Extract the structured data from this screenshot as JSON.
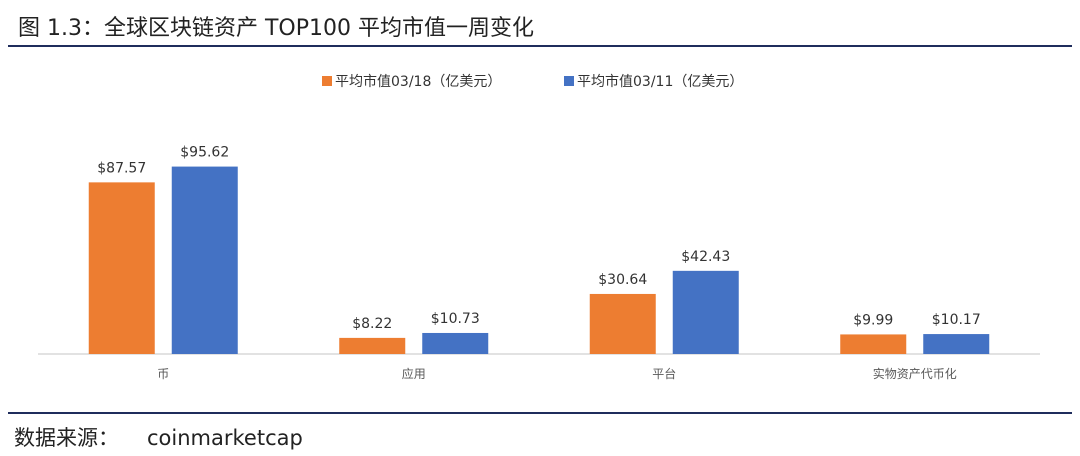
{
  "title": "图 1.3：全球区块链资产 TOP100 平均市值一周变化",
  "source": {
    "label": "数据来源：",
    "name": "coinmarketcap"
  },
  "chart_data": {
    "type": "bar",
    "categories": [
      "币",
      "应用",
      "平台",
      "实物资产代币化"
    ],
    "series": [
      {
        "name": "平均市值03/18（亿美元）",
        "values": [
          87.57,
          8.22,
          30.64,
          9.99
        ],
        "labels": [
          "$87.57",
          "$8.22",
          "$30.64",
          "$9.99"
        ],
        "color": "#ED7D31"
      },
      {
        "name": "平均市值03/11（亿美元）",
        "values": [
          95.62,
          10.73,
          42.43,
          10.17
        ],
        "labels": [
          "$95.62",
          "$10.73",
          "$42.43",
          "$10.17"
        ],
        "color": "#4472C4"
      }
    ],
    "ylim": [
      0,
      100
    ],
    "grid": false,
    "legend": "top-center",
    "axis_color": "#D9D9D9"
  }
}
